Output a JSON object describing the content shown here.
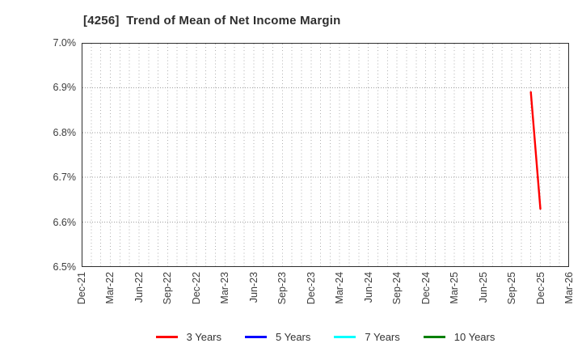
{
  "chart_data": {
    "type": "line",
    "title": "[4256]  Trend of Mean of Net Income Margin",
    "xlabel": "",
    "ylabel": "",
    "ylim": [
      6.5,
      7.0
    ],
    "y_unit": "%",
    "x_ticks": [
      "Dec-21",
      "Mar-22",
      "Jun-22",
      "Sep-22",
      "Dec-22",
      "Mar-23",
      "Jun-23",
      "Sep-23",
      "Dec-23",
      "Mar-24",
      "Jun-24",
      "Sep-24",
      "Dec-24",
      "Mar-25",
      "Jun-25",
      "Sep-25",
      "Dec-25",
      "Mar-26"
    ],
    "y_ticks": [
      {
        "label": "7.0%",
        "value": 7.0
      },
      {
        "label": "6.9%",
        "value": 6.9
      },
      {
        "label": "6.8%",
        "value": 6.8
      },
      {
        "label": "6.7%",
        "value": 6.7
      },
      {
        "label": "6.6%",
        "value": 6.6
      },
      {
        "label": "6.5%",
        "value": 6.5
      }
    ],
    "grid": {
      "on": true,
      "vertical_interval": "monthly",
      "horizontal_interval": "0.1%",
      "color": "#b0b0b0"
    },
    "legend_position": "bottom-center",
    "series": [
      {
        "name": "3 Years",
        "color": "#ff0000",
        "points": [
          {
            "x": "Nov-25",
            "y": 6.89
          },
          {
            "x": "Dec-25",
            "y": 6.63
          }
        ]
      },
      {
        "name": "5 Years",
        "color": "#0000ff",
        "points": []
      },
      {
        "name": "7 Years",
        "color": "#00ffff",
        "points": []
      },
      {
        "name": "10 Years",
        "color": "#008000",
        "points": []
      }
    ],
    "frame_color": "#2f2f2f",
    "text_color": "#3d3d3d"
  }
}
